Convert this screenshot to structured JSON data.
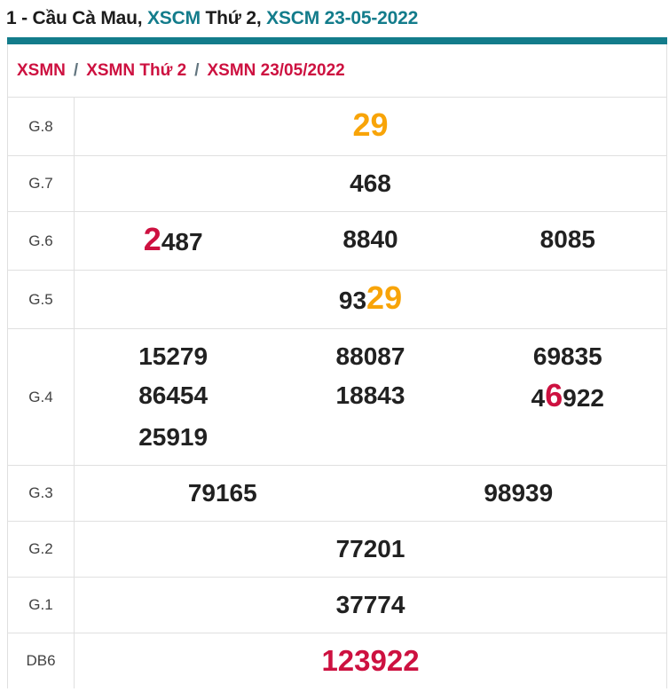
{
  "title": {
    "part1": "1 - Cầu Cà Mau, ",
    "part2": "XSCM ",
    "part3": "Thứ 2, ",
    "part4": "XSCM 23-05-2022"
  },
  "breadcrumb": {
    "separator": "/",
    "items": [
      {
        "label": "XSMN"
      },
      {
        "label": "XSMN Thứ 2"
      },
      {
        "label": "XSMN 23/05/2022"
      }
    ]
  },
  "table": {
    "rows": [
      {
        "label": "G.8",
        "values": [
          {
            "segments": [
              {
                "text": "29",
                "style": "orange-highlight"
              }
            ]
          }
        ]
      },
      {
        "label": "G.7",
        "values": [
          {
            "segments": [
              {
                "text": "468",
                "style": "normal"
              }
            ]
          }
        ]
      },
      {
        "label": "G.6",
        "values": [
          {
            "segments": [
              {
                "text": "2",
                "style": "red-highlight"
              },
              {
                "text": "487",
                "style": "normal"
              }
            ]
          },
          {
            "segments": [
              {
                "text": "8840",
                "style": "normal"
              }
            ]
          },
          {
            "segments": [
              {
                "text": "8085",
                "style": "normal"
              }
            ]
          }
        ]
      },
      {
        "label": "G.5",
        "values": [
          {
            "segments": [
              {
                "text": "93",
                "style": "normal"
              },
              {
                "text": "29",
                "style": "orange-highlight"
              }
            ]
          }
        ]
      },
      {
        "label": "G.4",
        "values": [
          {
            "segments": [
              {
                "text": "15279",
                "style": "normal"
              }
            ]
          },
          {
            "segments": [
              {
                "text": "88087",
                "style": "normal"
              }
            ]
          },
          {
            "segments": [
              {
                "text": "69835",
                "style": "normal"
              }
            ]
          },
          {
            "segments": [
              {
                "text": "86454",
                "style": "normal"
              }
            ]
          },
          {
            "segments": [
              {
                "text": "18843",
                "style": "normal"
              }
            ]
          },
          {
            "segments": [
              {
                "text": "4",
                "style": "normal"
              },
              {
                "text": "6",
                "style": "red-highlight"
              },
              {
                "text": "922",
                "style": "normal"
              }
            ]
          },
          {
            "segments": [
              {
                "text": "25919",
                "style": "normal"
              }
            ]
          }
        ]
      },
      {
        "label": "G.3",
        "values": [
          {
            "segments": [
              {
                "text": "79165",
                "style": "normal"
              }
            ]
          },
          {
            "segments": [
              {
                "text": "98939",
                "style": "normal"
              }
            ]
          }
        ]
      },
      {
        "label": "G.2",
        "values": [
          {
            "segments": [
              {
                "text": "77201",
                "style": "normal"
              }
            ]
          }
        ]
      },
      {
        "label": "G.1",
        "values": [
          {
            "segments": [
              {
                "text": "37774",
                "style": "normal"
              }
            ]
          }
        ]
      },
      {
        "label": "DB6",
        "values": [
          {
            "segments": [
              {
                "text": "123922",
                "style": "special-red"
              }
            ]
          }
        ]
      }
    ]
  },
  "colors": {
    "teal": "#137c8b",
    "crimson": "#cd1140",
    "orange": "#f8a408",
    "number_dark": "#212121",
    "label_gray": "#424242",
    "border_gray": "#e0e0e0",
    "separator_gray": "#62757f"
  }
}
